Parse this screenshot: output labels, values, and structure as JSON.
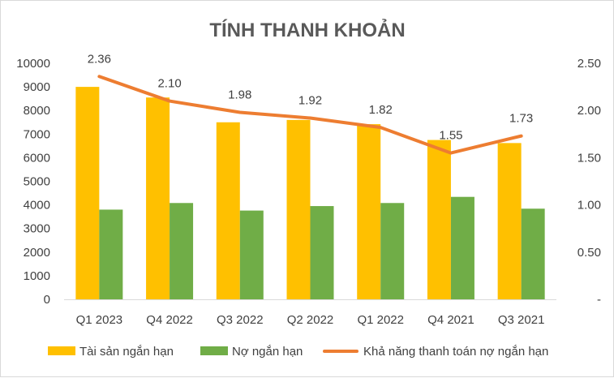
{
  "chart_data": {
    "type": "bar",
    "title": "TÍNH THANH KHOẢN",
    "categories": [
      "Q1 2023",
      "Q4 2022",
      "Q3 2022",
      "Q2 2022",
      "Q1 2022",
      "Q4 2021",
      "Q3 2021"
    ],
    "series": [
      {
        "name": "Tài sản ngắn hạn",
        "type": "bar",
        "axis": "left",
        "color": "#FFC000",
        "values": [
          9000,
          8550,
          7500,
          7600,
          7420,
          6750,
          6620
        ]
      },
      {
        "name": "Nợ ngắn hạn",
        "type": "bar",
        "axis": "left",
        "color": "#70AD47",
        "values": [
          3800,
          4080,
          3760,
          3950,
          4080,
          4340,
          3840
        ]
      },
      {
        "name": "Khả năng thanh toán nợ ngắn hạn",
        "type": "line",
        "axis": "right",
        "color": "#ED7D31",
        "values": [
          2.36,
          2.1,
          1.98,
          1.92,
          1.82,
          1.55,
          1.73
        ],
        "labels": [
          "2.36",
          "2.10",
          "1.98",
          "1.92",
          "1.82",
          "1.55",
          "1.73"
        ]
      }
    ],
    "y_left": {
      "min": 0,
      "max": 10000,
      "step": 1000,
      "ticks": [
        "0",
        "1000",
        "2000",
        "3000",
        "4000",
        "5000",
        "6000",
        "7000",
        "8000",
        "9000",
        "10000"
      ]
    },
    "y_right": {
      "min": 0,
      "max": 2.5,
      "step": 0.5,
      "ticks": [
        "-",
        "0.50",
        "1.00",
        "1.50",
        "2.00",
        "2.50"
      ]
    },
    "grid": false,
    "legend_position": "bottom"
  }
}
